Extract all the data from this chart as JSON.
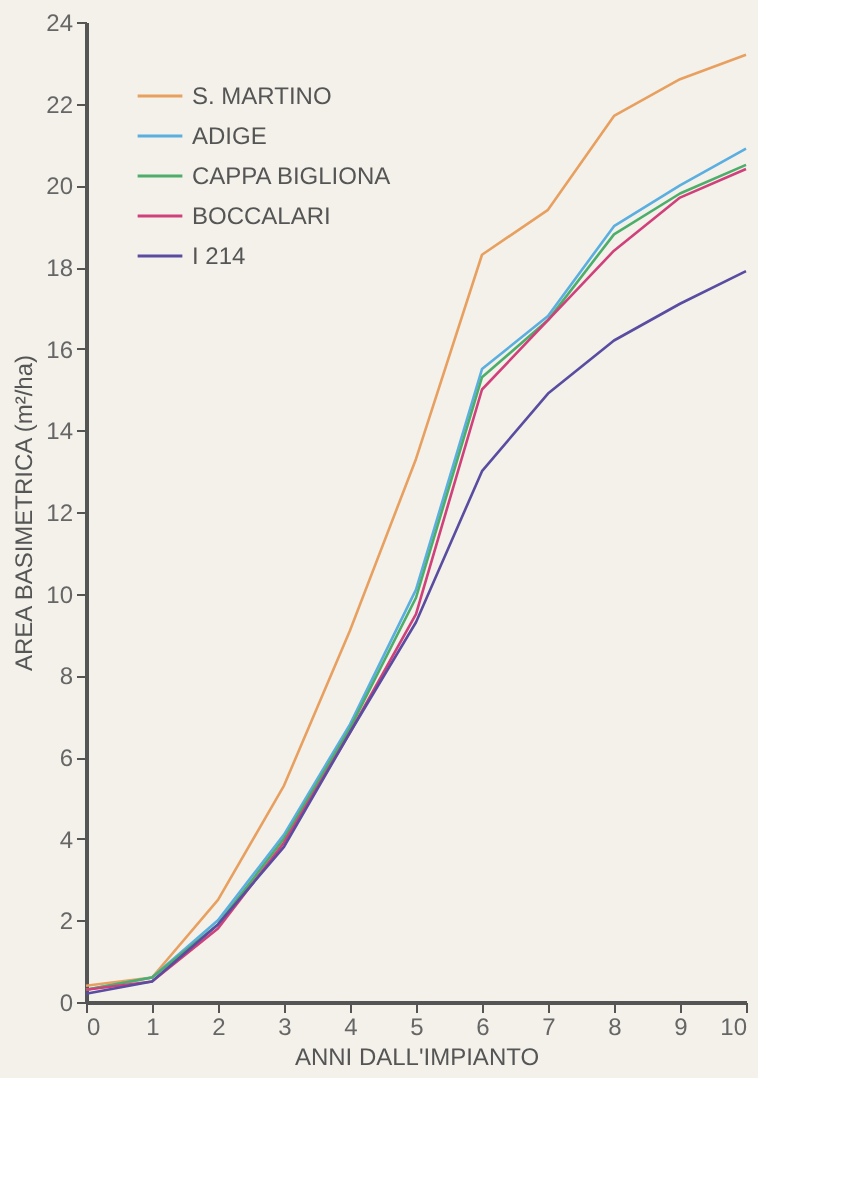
{
  "chart_data": {
    "type": "line",
    "xlabel": "ANNI DALL'IMPIANTO",
    "ylabel": "AREA BASIMETRICA (m²/ha)",
    "x": [
      0,
      1,
      2,
      3,
      4,
      5,
      6,
      7,
      8,
      9,
      10
    ],
    "xlim": [
      0,
      10
    ],
    "xticks": [
      0,
      1,
      2,
      3,
      4,
      5,
      6,
      7,
      8,
      9,
      10
    ],
    "ylim": [
      0,
      24
    ],
    "yticks": [
      0,
      2,
      4,
      6,
      8,
      10,
      12,
      14,
      16,
      18,
      20,
      22,
      24
    ],
    "grid": false,
    "legend": "top left",
    "marker": "none",
    "line_style": "solid",
    "series": [
      {
        "name": "S. MARTINO",
        "color": "#e8a060",
        "values": [
          0.4,
          0.6,
          2.5,
          5.3,
          9.1,
          13.3,
          18.3,
          19.4,
          21.7,
          22.6,
          23.2
        ]
      },
      {
        "name": "ADIGE",
        "color": "#5aaee0",
        "values": [
          0.3,
          0.6,
          2.0,
          4.1,
          6.8,
          10.1,
          15.5,
          16.8,
          19.0,
          20.0,
          20.9
        ]
      },
      {
        "name": "CAPPA BIGLIONA",
        "color": "#4cae6a",
        "values": [
          0.3,
          0.6,
          1.9,
          4.0,
          6.7,
          9.9,
          15.3,
          16.7,
          18.8,
          19.8,
          20.5
        ]
      },
      {
        "name": "BOCCALARI",
        "color": "#d0407a",
        "values": [
          0.3,
          0.5,
          1.8,
          3.9,
          6.6,
          9.5,
          15.0,
          16.7,
          18.4,
          19.7,
          20.4
        ]
      },
      {
        "name": "I 214",
        "color": "#5a4ca0",
        "values": [
          0.2,
          0.5,
          1.9,
          3.8,
          6.6,
          9.3,
          13.0,
          14.9,
          16.2,
          17.1,
          17.9
        ]
      }
    ]
  }
}
